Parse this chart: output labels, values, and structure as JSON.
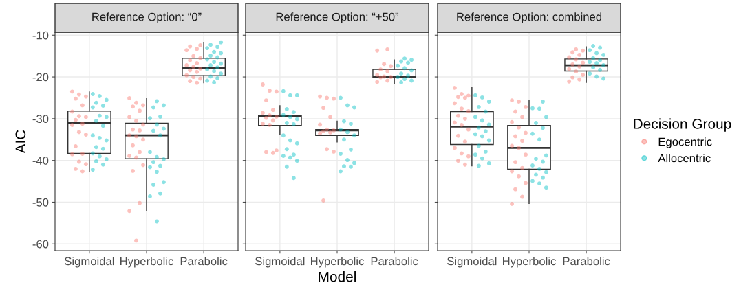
{
  "chart_data": [
    {
      "type": "box",
      "title": "Reference Option: “0”",
      "ylabel": "AIC",
      "legend_title": "Decision Group",
      "legend": "right",
      "categories": [
        "Sigmoidal",
        "Hyperbolic",
        "Parabolic"
      ],
      "ylim": [
        -61.6,
        -9.3
      ],
      "yticks": [
        -60,
        -50,
        -40,
        -30,
        -20,
        -10
      ],
      "grid": true,
      "boxes": [
        {
          "low": -42.6,
          "q1": -38.3,
          "median": -31.0,
          "q3": -28.2,
          "high": -23.6
        },
        {
          "low": -52.0,
          "q1": -39.6,
          "median": -34.0,
          "q3": -31.1,
          "high": -25.2
        },
        {
          "low": -21.4,
          "q1": -19.7,
          "median": -17.8,
          "q3": -15.5,
          "high": -11.7
        }
      ],
      "series": [
        {
          "name": "Egocentric",
          "type": "scatter",
          "color": "#f8766d",
          "x": [
            "Sigmoidal",
            "Sigmoidal",
            "Sigmoidal",
            "Sigmoidal",
            "Sigmoidal",
            "Sigmoidal",
            "Sigmoidal",
            "Sigmoidal",
            "Sigmoidal",
            "Sigmoidal",
            "Sigmoidal",
            "Sigmoidal",
            "Sigmoidal",
            "Sigmoidal",
            "Sigmoidal",
            "Sigmoidal",
            "Sigmoidal",
            "Sigmoidal",
            "Sigmoidal",
            "Sigmoidal",
            "Hyperbolic",
            "Hyperbolic",
            "Hyperbolic",
            "Hyperbolic",
            "Hyperbolic",
            "Hyperbolic",
            "Hyperbolic",
            "Hyperbolic",
            "Hyperbolic",
            "Hyperbolic",
            "Hyperbolic",
            "Hyperbolic",
            "Hyperbolic",
            "Hyperbolic",
            "Hyperbolic",
            "Hyperbolic",
            "Hyperbolic",
            "Hyperbolic",
            "Hyperbolic",
            "Hyperbolic",
            "Hyperbolic",
            "Hyperbolic",
            "Parabolic",
            "Parabolic",
            "Parabolic",
            "Parabolic",
            "Parabolic",
            "Parabolic",
            "Parabolic",
            "Parabolic",
            "Parabolic",
            "Parabolic",
            "Parabolic",
            "Parabolic",
            "Parabolic",
            "Parabolic",
            "Parabolic",
            "Parabolic",
            "Parabolic",
            "Parabolic"
          ],
          "values": [
            -23.5,
            -24.2,
            -24.7,
            -25.2,
            -26.8,
            -28.3,
            -29.4,
            -29.6,
            -30.3,
            -31.2,
            -31.5,
            -33.2,
            -33.8,
            -36.6,
            -38.4,
            -38.5,
            -40.3,
            -40.9,
            -42.0,
            -42.6,
            -25.1,
            -26.2,
            -26.8,
            -27.1,
            -28.1,
            -29.6,
            -30.5,
            -31.4,
            -32.6,
            -32.8,
            -34.0,
            -34.2,
            -35.0,
            -36.4,
            -38.0,
            -38.9,
            -39.3,
            -41.1,
            -42.5,
            -50.2,
            -52.1,
            -59.2,
            -12.4,
            -12.7,
            -13.3,
            -13.6,
            -15.0,
            -15.5,
            -16.0,
            -16.7,
            -17.2,
            -17.6,
            -18.0,
            -18.4,
            -18.8,
            -19.6,
            -20.0,
            -20.4,
            -21.0,
            -21.4
          ]
        },
        {
          "name": "Allocentric",
          "type": "scatter",
          "color": "#00bfc4",
          "x": [
            "Sigmoidal",
            "Sigmoidal",
            "Sigmoidal",
            "Sigmoidal",
            "Sigmoidal",
            "Sigmoidal",
            "Sigmoidal",
            "Sigmoidal",
            "Sigmoidal",
            "Sigmoidal",
            "Sigmoidal",
            "Sigmoidal",
            "Sigmoidal",
            "Sigmoidal",
            "Sigmoidal",
            "Sigmoidal",
            "Sigmoidal",
            "Sigmoidal",
            "Sigmoidal",
            "Sigmoidal",
            "Sigmoidal",
            "Hyperbolic",
            "Hyperbolic",
            "Hyperbolic",
            "Hyperbolic",
            "Hyperbolic",
            "Hyperbolic",
            "Hyperbolic",
            "Hyperbolic",
            "Hyperbolic",
            "Hyperbolic",
            "Hyperbolic",
            "Hyperbolic",
            "Hyperbolic",
            "Hyperbolic",
            "Hyperbolic",
            "Hyperbolic",
            "Hyperbolic",
            "Hyperbolic",
            "Hyperbolic",
            "Hyperbolic",
            "Hyperbolic",
            "Parabolic",
            "Parabolic",
            "Parabolic",
            "Parabolic",
            "Parabolic",
            "Parabolic",
            "Parabolic",
            "Parabolic",
            "Parabolic",
            "Parabolic",
            "Parabolic",
            "Parabolic",
            "Parabolic",
            "Parabolic",
            "Parabolic",
            "Parabolic",
            "Parabolic",
            "Parabolic",
            "Parabolic",
            "Parabolic"
          ],
          "values": [
            -24.1,
            -24.6,
            -25.5,
            -26.2,
            -26.9,
            -27.3,
            -29.3,
            -29.6,
            -30.5,
            -31.7,
            -34.0,
            -34.6,
            -35.2,
            -36.8,
            -37.2,
            -38.3,
            -39.0,
            -39.7,
            -40.2,
            -41.0,
            -42.2,
            -25.8,
            -26.8,
            -27.3,
            -29.5,
            -29.9,
            -31.4,
            -32.4,
            -32.9,
            -34.0,
            -38.0,
            -39.2,
            -39.7,
            -40.4,
            -41.3,
            -41.6,
            -42.7,
            -45.2,
            -45.8,
            -47.9,
            -48.6,
            -54.6,
            -11.7,
            -12.3,
            -12.8,
            -13.1,
            -14.0,
            -14.3,
            -14.9,
            -15.3,
            -15.8,
            -16.4,
            -16.8,
            -17.2,
            -17.7,
            -18.2,
            -18.6,
            -19.2,
            -19.9,
            -20.3,
            -20.9,
            -21.3
          ]
        }
      ]
    },
    {
      "type": "box",
      "title": "Reference Option: “+50”",
      "xlabel": "Model",
      "categories": [
        "Sigmoidal",
        "Hyperbolic",
        "Parabolic"
      ],
      "ylim": [
        -61.6,
        -9.3
      ],
      "yticks": [
        -60,
        -50,
        -40,
        -30,
        -20,
        -10
      ],
      "grid": true,
      "tick_labels": "x",
      "boxes": [
        {
          "low": -33.8,
          "q1": -31.6,
          "median": -29.3,
          "q3": -29.2,
          "high": -26.9
        },
        {
          "low": -35.6,
          "q1": -34.0,
          "median": -32.8,
          "q3": -32.6,
          "high": -30.6
        },
        {
          "low": -21.7,
          "q1": -20.1,
          "median": -20.0,
          "q3": -18.2,
          "high": -15.9
        }
      ],
      "series": [
        {
          "type": "scatter",
          "color": "#f8766d",
          "x": [
            "Sigmoidal",
            "Sigmoidal",
            "Sigmoidal",
            "Sigmoidal",
            "Sigmoidal",
            "Sigmoidal",
            "Sigmoidal",
            "Sigmoidal",
            "Sigmoidal",
            "Sigmoidal",
            "Sigmoidal",
            "Sigmoidal",
            "Sigmoidal",
            "Sigmoidal",
            "Sigmoidal",
            "Hyperbolic",
            "Hyperbolic",
            "Hyperbolic",
            "Hyperbolic",
            "Hyperbolic",
            "Hyperbolic",
            "Hyperbolic",
            "Hyperbolic",
            "Hyperbolic",
            "Hyperbolic",
            "Hyperbolic",
            "Hyperbolic",
            "Hyperbolic",
            "Hyperbolic",
            "Parabolic",
            "Parabolic",
            "Parabolic",
            "Parabolic",
            "Parabolic",
            "Parabolic",
            "Parabolic",
            "Parabolic",
            "Parabolic",
            "Parabolic",
            "Parabolic",
            "Parabolic"
          ],
          "values": [
            -21.8,
            -23.3,
            -23.5,
            -25.6,
            -27.9,
            -28.6,
            -29.2,
            -29.5,
            -29.8,
            -30.4,
            -31.2,
            -31.5,
            -37.6,
            -38.0,
            -38.2,
            -24.7,
            -25.0,
            -25.2,
            -27.4,
            -29.6,
            -31.4,
            -32.6,
            -32.8,
            -33.0,
            -33.3,
            -33.5,
            -37.3,
            -37.9,
            -49.6,
            -13.4,
            -13.7,
            -16.9,
            -17.4,
            -18.2,
            -18.6,
            -19.5,
            -19.9,
            -20.0,
            -20.1,
            -20.9,
            -21.2
          ]
        },
        {
          "type": "scatter",
          "color": "#00bfc4",
          "x": [
            "Sigmoidal",
            "Sigmoidal",
            "Sigmoidal",
            "Sigmoidal",
            "Sigmoidal",
            "Sigmoidal",
            "Sigmoidal",
            "Sigmoidal",
            "Sigmoidal",
            "Sigmoidal",
            "Sigmoidal",
            "Sigmoidal",
            "Sigmoidal",
            "Sigmoidal",
            "Sigmoidal",
            "Sigmoidal",
            "Sigmoidal",
            "Sigmoidal",
            "Sigmoidal",
            "Sigmoidal",
            "Hyperbolic",
            "Hyperbolic",
            "Hyperbolic",
            "Hyperbolic",
            "Hyperbolic",
            "Hyperbolic",
            "Hyperbolic",
            "Hyperbolic",
            "Hyperbolic",
            "Hyperbolic",
            "Hyperbolic",
            "Hyperbolic",
            "Hyperbolic",
            "Hyperbolic",
            "Hyperbolic",
            "Hyperbolic",
            "Parabolic",
            "Parabolic",
            "Parabolic",
            "Parabolic",
            "Parabolic",
            "Parabolic",
            "Parabolic",
            "Parabolic",
            "Parabolic",
            "Parabolic",
            "Parabolic",
            "Parabolic",
            "Parabolic"
          ],
          "values": [
            -23.4,
            -24.4,
            -24.4,
            -27.7,
            -28.4,
            -29.1,
            -29.6,
            -30.1,
            -31.0,
            -31.3,
            -34.0,
            -35.2,
            -35.9,
            -37.3,
            -38.6,
            -38.9,
            -39.3,
            -40.1,
            -41.5,
            -44.2,
            -25.0,
            -26.8,
            -27.3,
            -30.6,
            -31.2,
            -32.6,
            -33.2,
            -34.0,
            -35.0,
            -37.4,
            -38.4,
            -39.9,
            -40.6,
            -41.4,
            -41.5,
            -42.6,
            -15.6,
            -15.9,
            -16.3,
            -16.6,
            -17.3,
            -17.9,
            -18.4,
            -19.2,
            -19.7,
            -20.0,
            -20.5,
            -20.9,
            -21.3
          ]
        }
      ]
    },
    {
      "type": "box",
      "title": "Reference Option: combined",
      "categories": [
        "Sigmoidal",
        "Hyperbolic",
        "Parabolic"
      ],
      "ylim": [
        -61.6,
        -9.3
      ],
      "yticks": [
        -60,
        -50,
        -40,
        -30,
        -20,
        -10
      ],
      "grid": true,
      "tick_labels": "x",
      "boxes": [
        {
          "low": -41.3,
          "q1": -36.2,
          "median": -31.9,
          "q3": -28.3,
          "high": -22.5
        },
        {
          "low": -50.3,
          "q1": -42.1,
          "median": -37.0,
          "q3": -31.6,
          "high": -25.6
        },
        {
          "low": -21.3,
          "q1": -18.6,
          "median": -17.2,
          "q3": -15.7,
          "high": -12.8
        }
      ],
      "series": [
        {
          "type": "scatter",
          "color": "#f8766d",
          "x": [
            "Sigmoidal",
            "Sigmoidal",
            "Sigmoidal",
            "Sigmoidal",
            "Sigmoidal",
            "Sigmoidal",
            "Sigmoidal",
            "Sigmoidal",
            "Sigmoidal",
            "Sigmoidal",
            "Sigmoidal",
            "Sigmoidal",
            "Sigmoidal",
            "Sigmoidal",
            "Sigmoidal",
            "Sigmoidal",
            "Sigmoidal",
            "Sigmoidal",
            "Sigmoidal",
            "Sigmoidal",
            "Hyperbolic",
            "Hyperbolic",
            "Hyperbolic",
            "Hyperbolic",
            "Hyperbolic",
            "Hyperbolic",
            "Hyperbolic",
            "Hyperbolic",
            "Hyperbolic",
            "Hyperbolic",
            "Hyperbolic",
            "Hyperbolic",
            "Hyperbolic",
            "Hyperbolic",
            "Hyperbolic",
            "Hyperbolic",
            "Hyperbolic",
            "Hyperbolic",
            "Hyperbolic",
            "Hyperbolic",
            "Hyperbolic",
            "Parabolic",
            "Parabolic",
            "Parabolic",
            "Parabolic",
            "Parabolic",
            "Parabolic",
            "Parabolic",
            "Parabolic",
            "Parabolic",
            "Parabolic",
            "Parabolic",
            "Parabolic",
            "Parabolic",
            "Parabolic",
            "Parabolic"
          ],
          "values": [
            -22.6,
            -24.1,
            -24.5,
            -24.8,
            -25.0,
            -26.3,
            -27.6,
            -28.2,
            -29.3,
            -30.0,
            -30.9,
            -31.5,
            -32.6,
            -34.1,
            -35.5,
            -37.0,
            -38.3,
            -39.0,
            -40.1,
            -41.0,
            -25.6,
            -25.9,
            -27.2,
            -28.3,
            -29.6,
            -30.8,
            -32.1,
            -33.4,
            -34.2,
            -35.3,
            -36.5,
            -37.0,
            -38.6,
            -40.4,
            -41.8,
            -42.6,
            -43.8,
            -45.4,
            -46.9,
            -48.7,
            -50.4,
            -13.4,
            -13.7,
            -14.1,
            -14.7,
            -15.3,
            -15.8,
            -16.6,
            -17.0,
            -17.5,
            -18.1,
            -18.7,
            -19.5,
            -20.1,
            -20.6,
            -21.1
          ]
        },
        {
          "type": "scatter",
          "color": "#00bfc4",
          "x": [
            "Sigmoidal",
            "Sigmoidal",
            "Sigmoidal",
            "Sigmoidal",
            "Sigmoidal",
            "Sigmoidal",
            "Sigmoidal",
            "Sigmoidal",
            "Sigmoidal",
            "Sigmoidal",
            "Sigmoidal",
            "Sigmoidal",
            "Sigmoidal",
            "Sigmoidal",
            "Sigmoidal",
            "Sigmoidal",
            "Sigmoidal",
            "Sigmoidal",
            "Sigmoidal",
            "Hyperbolic",
            "Hyperbolic",
            "Hyperbolic",
            "Hyperbolic",
            "Hyperbolic",
            "Hyperbolic",
            "Hyperbolic",
            "Hyperbolic",
            "Hyperbolic",
            "Hyperbolic",
            "Hyperbolic",
            "Hyperbolic",
            "Hyperbolic",
            "Hyperbolic",
            "Hyperbolic",
            "Hyperbolic",
            "Hyperbolic",
            "Hyperbolic",
            "Hyperbolic",
            "Parabolic",
            "Parabolic",
            "Parabolic",
            "Parabolic",
            "Parabolic",
            "Parabolic",
            "Parabolic",
            "Parabolic",
            "Parabolic",
            "Parabolic",
            "Parabolic",
            "Parabolic",
            "Parabolic",
            "Parabolic",
            "Parabolic"
          ],
          "values": [
            -24.4,
            -24.9,
            -25.9,
            -27.2,
            -28.3,
            -29.6,
            -30.4,
            -31.4,
            -32.1,
            -33.0,
            -33.7,
            -34.2,
            -35.2,
            -36.5,
            -37.9,
            -38.6,
            -39.5,
            -40.7,
            -41.3,
            -25.9,
            -27.5,
            -27.6,
            -29.6,
            -31.0,
            -32.2,
            -33.6,
            -35.0,
            -38.8,
            -39.6,
            -40.3,
            -41.2,
            -42.0,
            -42.8,
            -43.4,
            -44.1,
            -44.9,
            -45.5,
            -46.5,
            -12.6,
            -13.0,
            -13.6,
            -14.3,
            -14.7,
            -15.5,
            -16.0,
            -16.4,
            -16.7,
            -17.2,
            -17.7,
            -18.3,
            -19.2,
            -19.9,
            -20.4
          ]
        }
      ]
    }
  ]
}
